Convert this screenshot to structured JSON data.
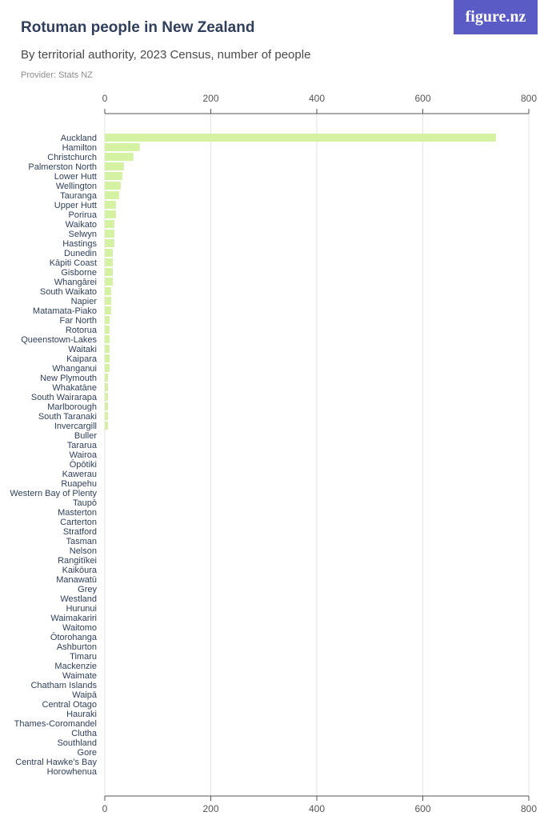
{
  "header": {
    "title": "Rotuman people in New Zealand",
    "subtitle": "By territorial authority, 2023 Census, number of people",
    "provider": "Provider: Stats NZ"
  },
  "logo": {
    "text": "figure.nz"
  },
  "colors": {
    "bar": "#d4f2a2",
    "grid": "#e3e3e3",
    "axis": "#555555",
    "label": "#2f3f5c",
    "logo_bg": "#5a5bc4"
  },
  "chart_data": {
    "type": "bar",
    "orientation": "horizontal",
    "title": "Rotuman people in New Zealand",
    "subtitle": "By territorial authority, 2023 Census, number of people",
    "xlim": [
      0,
      800
    ],
    "xticks": [
      0,
      200,
      400,
      600,
      800
    ],
    "grid": true,
    "categories": [
      "Auckland",
      "Hamilton",
      "Christchurch",
      "Palmerston North",
      "Lower Hutt",
      "Wellington",
      "Tauranga",
      "Upper Hutt",
      "Porirua",
      "Waikato",
      "Selwyn",
      "Hastings",
      "Dunedin",
      "Kāpiti Coast",
      "Gisborne",
      "Whangārei",
      "South Waikato",
      "Napier",
      "Matamata-Piako",
      "Far North",
      "Rotorua",
      "Queenstown-Lakes",
      "Waitaki",
      "Kaipara",
      "Whanganui",
      "New Plymouth",
      "Whakatāne",
      "South Wairarapa",
      "Marlborough",
      "South Taranaki",
      "Invercargill",
      "Buller",
      "Tararua",
      "Wairoa",
      "Ōpōtiki",
      "Kawerau",
      "Ruapehu",
      "Western Bay of Plenty",
      "Taupō",
      "Masterton",
      "Carterton",
      "Stratford",
      "Tasman",
      "Nelson",
      "Rangitīkei",
      "Kaikōura",
      "Manawatū",
      "Grey",
      "Westland",
      "Hurunui",
      "Waimakariri",
      "Waitomo",
      "Ōtorohanga",
      "Ashburton",
      "Timaru",
      "Mackenzie",
      "Waimate",
      "Chatham Islands",
      "Waipā",
      "Central Otago",
      "Hauraki",
      "Thames-Coromandel",
      "Clutha",
      "Southland",
      "Gore",
      "Central Hawke's Bay",
      "Horowhenua"
    ],
    "values": [
      738,
      66,
      54,
      36,
      33,
      30,
      27,
      21,
      21,
      18,
      18,
      18,
      15,
      15,
      15,
      15,
      12,
      12,
      12,
      9,
      9,
      9,
      9,
      9,
      9,
      6,
      6,
      6,
      6,
      6,
      6,
      0,
      0,
      0,
      0,
      0,
      0,
      0,
      0,
      0,
      0,
      0,
      0,
      0,
      0,
      0,
      0,
      0,
      0,
      0,
      0,
      0,
      0,
      0,
      0,
      0,
      0,
      0,
      0,
      0,
      0,
      0,
      0,
      0,
      0,
      0,
      0
    ]
  }
}
